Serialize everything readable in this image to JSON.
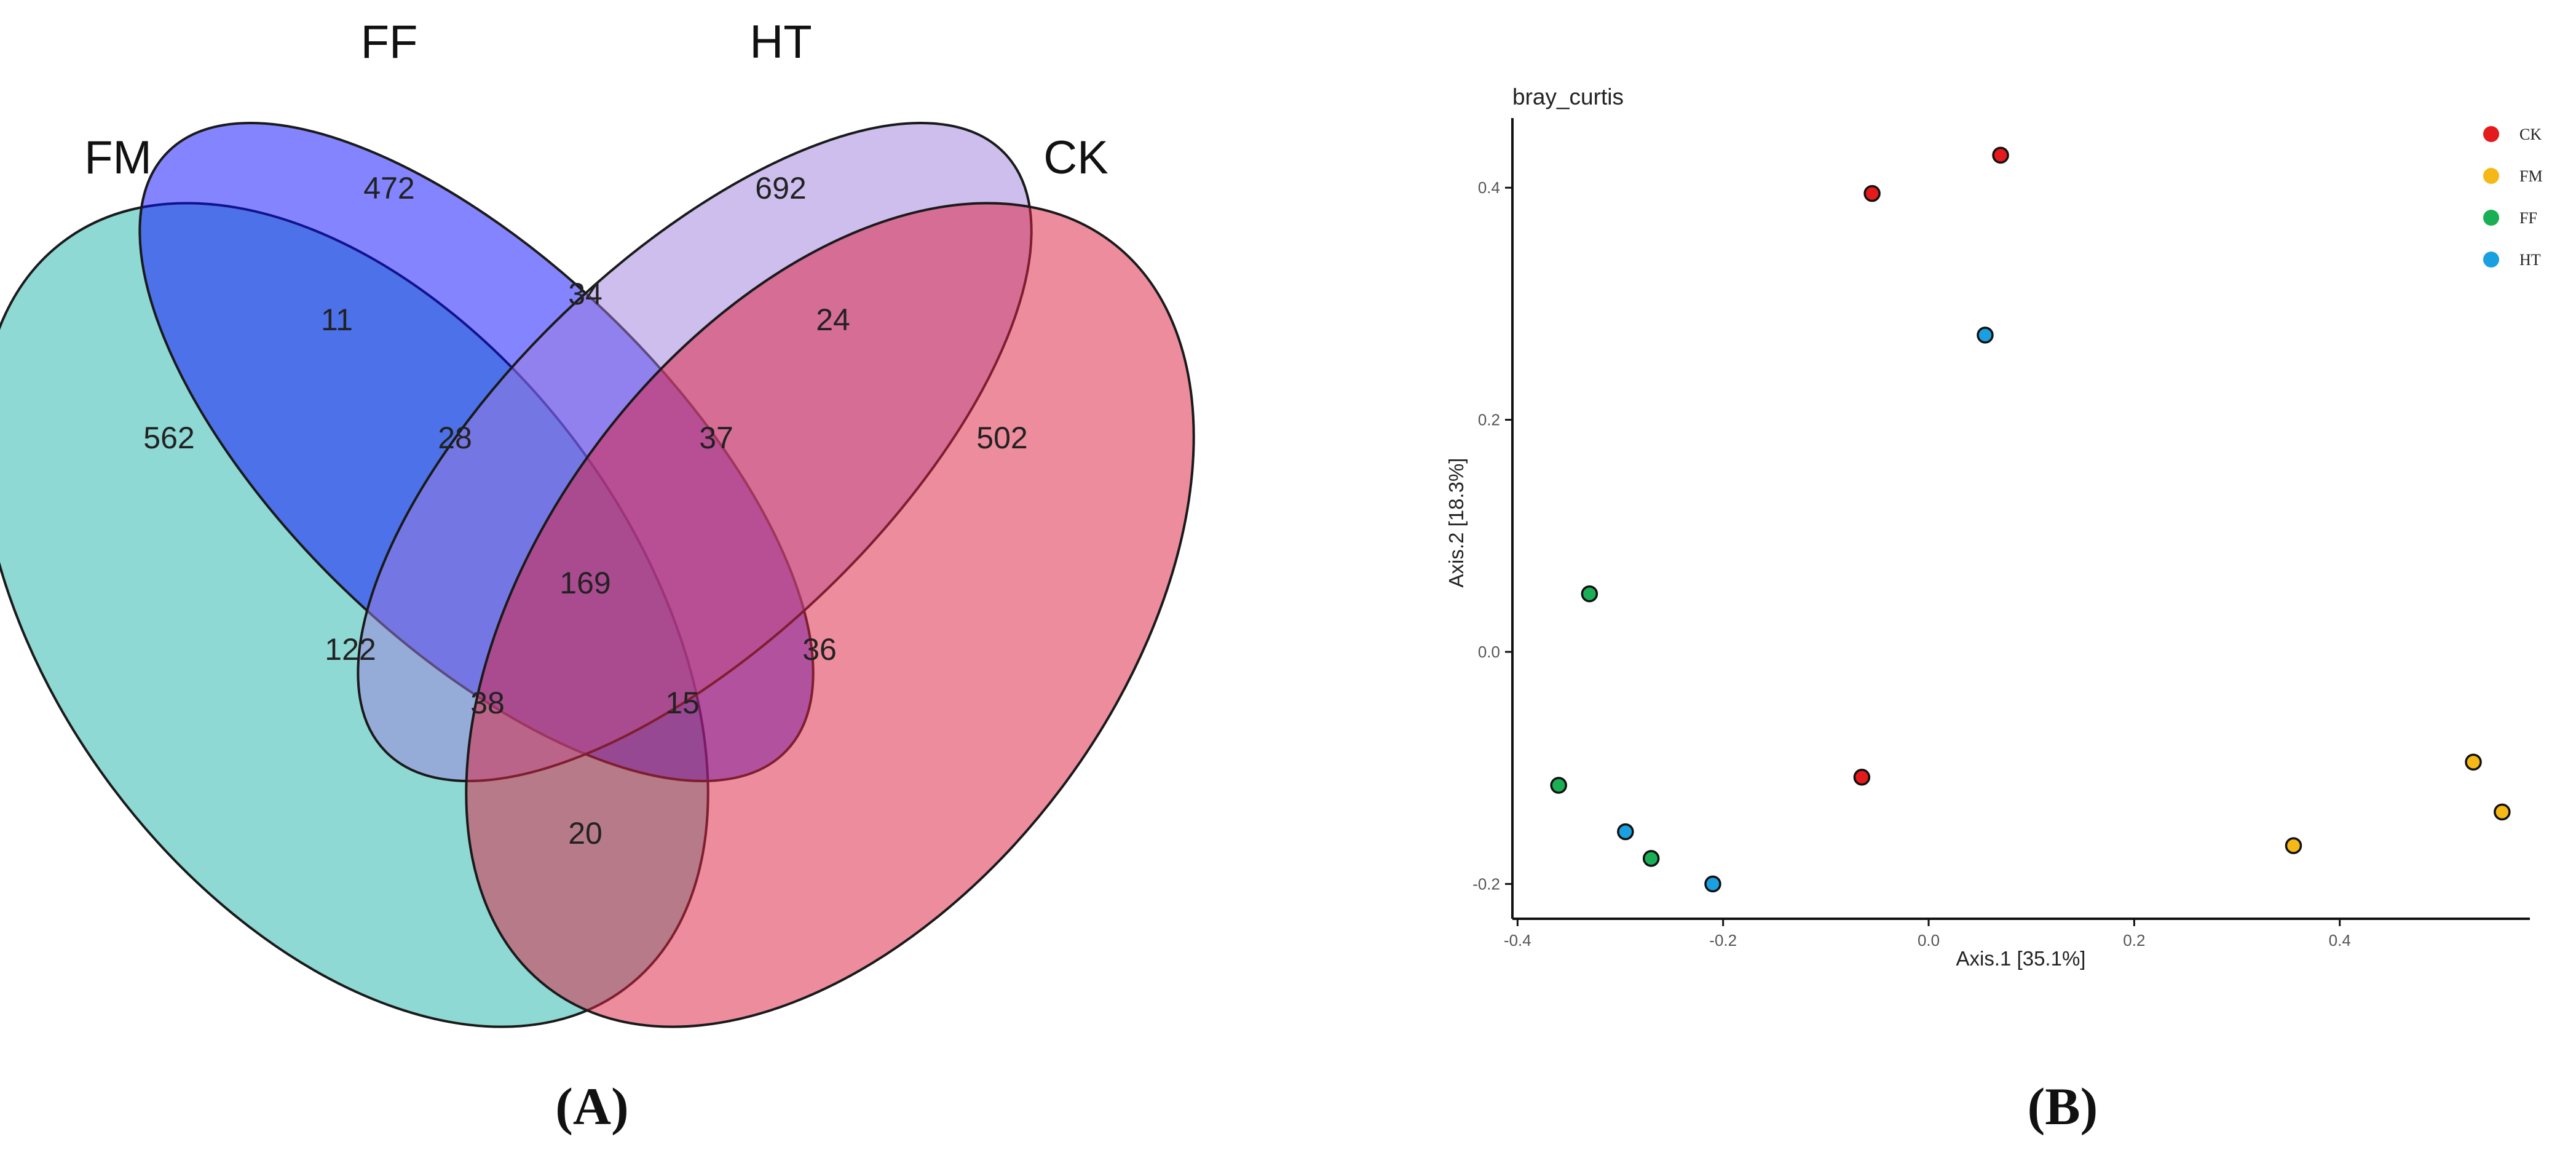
{
  "panel_a": {
    "label": "(A)",
    "chart_data": {
      "type": "venn",
      "sets": [
        {
          "name": "FM",
          "color": "#3dbdb3"
        },
        {
          "name": "FF",
          "color": "#0a0aff"
        },
        {
          "name": "HT",
          "color": "#9c7ede"
        },
        {
          "name": "CK",
          "color": "#dc2243"
        }
      ],
      "regions": [
        {
          "sets": [
            "FM"
          ],
          "count": 562
        },
        {
          "sets": [
            "FF"
          ],
          "count": 472
        },
        {
          "sets": [
            "HT"
          ],
          "count": 692
        },
        {
          "sets": [
            "CK"
          ],
          "count": 502
        },
        {
          "sets": [
            "FM",
            "FF"
          ],
          "count": 11
        },
        {
          "sets": [
            "FF",
            "HT"
          ],
          "count": 34
        },
        {
          "sets": [
            "HT",
            "CK"
          ],
          "count": 24
        },
        {
          "sets": [
            "FM",
            "FF",
            "HT"
          ],
          "count": 28
        },
        {
          "sets": [
            "FF",
            "HT",
            "CK"
          ],
          "count": 37
        },
        {
          "sets": [
            "FM",
            "HT"
          ],
          "count": 122
        },
        {
          "sets": [
            "FF",
            "CK"
          ],
          "count": 36
        },
        {
          "sets": [
            "FM",
            "FF",
            "HT",
            "CK"
          ],
          "count": 169
        },
        {
          "sets": [
            "FM",
            "HT",
            "CK"
          ],
          "count": 38
        },
        {
          "sets": [
            "FM",
            "FF",
            "CK"
          ],
          "count": 15
        },
        {
          "sets": [
            "FM",
            "CK"
          ],
          "count": 20
        }
      ]
    }
  },
  "panel_b": {
    "label": "(B)",
    "chart_data": {
      "type": "scatter",
      "title": "bray_curtis",
      "xlabel": "Axis.1 [35.1%]",
      "ylabel": "Axis.2 [18.3%]",
      "xlim": [
        -0.405,
        0.585
      ],
      "ylim": [
        -0.23,
        0.46
      ],
      "xticks": [
        -0.4,
        -0.2,
        0.0,
        0.2,
        0.4
      ],
      "yticks": [
        -0.2,
        0.0,
        0.2,
        0.4
      ],
      "xtick_labels": [
        "-0.4",
        "-0.2",
        "0.0",
        "0.2",
        "0.4"
      ],
      "ytick_labels": [
        "-0.2",
        "0.0",
        "0.2",
        "0.4"
      ],
      "legend_position": "top-right",
      "series": [
        {
          "name": "CK",
          "color": "#e41a1c",
          "points": [
            {
              "x": 0.07,
              "y": 0.428
            },
            {
              "x": -0.055,
              "y": 0.395
            },
            {
              "x": -0.065,
              "y": -0.108
            }
          ]
        },
        {
          "name": "FM",
          "color": "#f5b817",
          "points": [
            {
              "x": 0.53,
              "y": -0.095
            },
            {
              "x": 0.558,
              "y": -0.138
            },
            {
              "x": 0.355,
              "y": -0.167
            }
          ]
        },
        {
          "name": "FF",
          "color": "#1aaf54",
          "points": [
            {
              "x": -0.33,
              "y": 0.05
            },
            {
              "x": -0.36,
              "y": -0.115
            },
            {
              "x": -0.27,
              "y": -0.178
            }
          ]
        },
        {
          "name": "HT",
          "color": "#1aa0e0",
          "points": [
            {
              "x": 0.055,
              "y": 0.273
            },
            {
              "x": -0.295,
              "y": -0.155
            },
            {
              "x": -0.21,
              "y": -0.2
            }
          ]
        }
      ]
    }
  }
}
